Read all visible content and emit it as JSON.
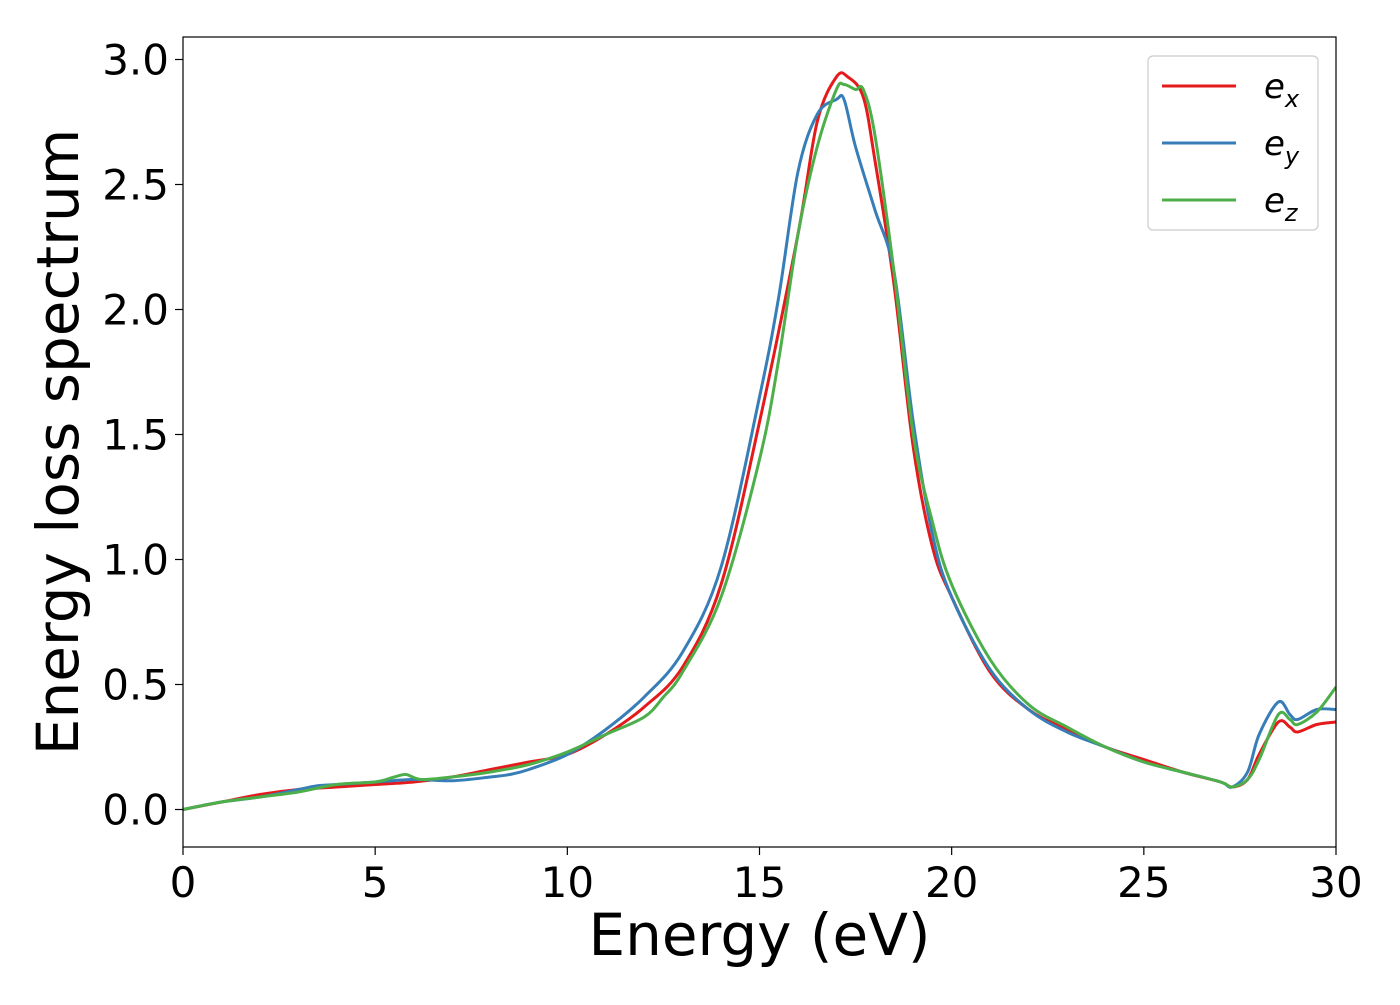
{
  "chart_data": {
    "type": "line",
    "xlabel": "Energy (eV)",
    "ylabel": "Energy loss spectrum",
    "xlim": [
      0,
      30
    ],
    "ylim": [
      -0.15,
      3.09
    ],
    "xticks": [
      "0",
      "5",
      "10",
      "15",
      "20",
      "25",
      "30"
    ],
    "yticks": [
      "0.0",
      "0.5",
      "1.0",
      "1.5",
      "2.0",
      "2.5",
      "3.0"
    ],
    "grid": false,
    "legend_position": "top-right",
    "series": [
      {
        "name": "e",
        "subscript": "x",
        "color": "#e41a1c",
        "x": [
          0,
          1,
          2,
          3,
          4,
          5,
          6,
          7,
          8,
          9,
          10,
          11,
          12,
          13,
          14,
          15,
          16,
          16.5,
          17,
          17.3,
          17.7,
          18,
          18.5,
          19,
          19.5,
          20,
          21,
          22,
          23,
          24,
          25,
          26,
          27,
          27.3,
          27.7,
          28,
          28.5,
          28.8,
          29,
          29.5,
          30
        ],
        "y": [
          0.0,
          0.03,
          0.06,
          0.08,
          0.09,
          0.1,
          0.11,
          0.13,
          0.16,
          0.19,
          0.22,
          0.3,
          0.41,
          0.57,
          0.9,
          1.55,
          2.3,
          2.75,
          2.93,
          2.93,
          2.85,
          2.6,
          2.1,
          1.45,
          1.05,
          0.85,
          0.55,
          0.4,
          0.32,
          0.25,
          0.2,
          0.15,
          0.11,
          0.09,
          0.12,
          0.22,
          0.35,
          0.33,
          0.31,
          0.34,
          0.35
        ]
      },
      {
        "name": "e",
        "subscript": "y",
        "color": "#377eb8",
        "x": [
          0,
          1,
          2,
          3,
          3.5,
          4,
          5,
          6,
          7,
          8,
          8.5,
          9,
          10,
          11,
          12,
          13,
          14,
          15,
          15.5,
          16,
          16.5,
          17,
          17.2,
          17.5,
          18,
          18.5,
          19,
          19.5,
          20,
          21,
          22,
          23,
          24,
          25,
          26,
          27,
          27.3,
          27.7,
          28,
          28.5,
          28.8,
          29,
          29.5,
          30
        ],
        "y": [
          0.0,
          0.03,
          0.05,
          0.08,
          0.095,
          0.1,
          0.11,
          0.12,
          0.115,
          0.13,
          0.14,
          0.16,
          0.22,
          0.32,
          0.45,
          0.63,
          0.97,
          1.65,
          2.05,
          2.55,
          2.78,
          2.84,
          2.84,
          2.65,
          2.4,
          2.15,
          1.55,
          1.1,
          0.85,
          0.56,
          0.4,
          0.31,
          0.25,
          0.19,
          0.15,
          0.11,
          0.09,
          0.15,
          0.3,
          0.43,
          0.38,
          0.36,
          0.4,
          0.4
        ]
      },
      {
        "name": "e",
        "subscript": "z",
        "color": "#4daf4a",
        "x": [
          0,
          1,
          2,
          3,
          4,
          5,
          5.5,
          5.8,
          6.2,
          7,
          8,
          9,
          10,
          11,
          12,
          12.5,
          13,
          14,
          15,
          15.5,
          16,
          16.5,
          17,
          17.2,
          17.5,
          17.7,
          18,
          18.5,
          19,
          19.5,
          20,
          21,
          22,
          23,
          24,
          25,
          26,
          27,
          27.3,
          27.7,
          28,
          28.5,
          28.8,
          29,
          29.5,
          30
        ],
        "y": [
          0.0,
          0.03,
          0.05,
          0.07,
          0.1,
          0.11,
          0.13,
          0.14,
          0.12,
          0.13,
          0.15,
          0.18,
          0.23,
          0.3,
          0.37,
          0.45,
          0.55,
          0.85,
          1.4,
          1.8,
          2.3,
          2.65,
          2.88,
          2.9,
          2.88,
          2.88,
          2.7,
          2.15,
          1.5,
          1.15,
          0.9,
          0.6,
          0.42,
          0.33,
          0.25,
          0.19,
          0.15,
          0.11,
          0.09,
          0.12,
          0.2,
          0.38,
          0.36,
          0.34,
          0.39,
          0.49
        ]
      }
    ]
  }
}
